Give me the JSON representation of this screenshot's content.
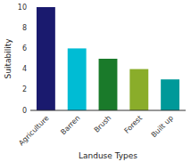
{
  "chart_data": {
    "type": "bar",
    "categories": [
      "Agriculture",
      "Barren",
      "Brush",
      "Forest",
      "Built up"
    ],
    "values": [
      10,
      6,
      5,
      4,
      3
    ],
    "colors": [
      "#1a1a6e",
      "#00bcd4",
      "#1a7a2a",
      "#8aad2a",
      "#009999"
    ],
    "xlabel": "Landuse Types",
    "ylabel": "Suitability",
    "ylim": [
      0,
      10
    ],
    "yticks": [
      0,
      2,
      4,
      6,
      8,
      10
    ],
    "grid": false
  }
}
